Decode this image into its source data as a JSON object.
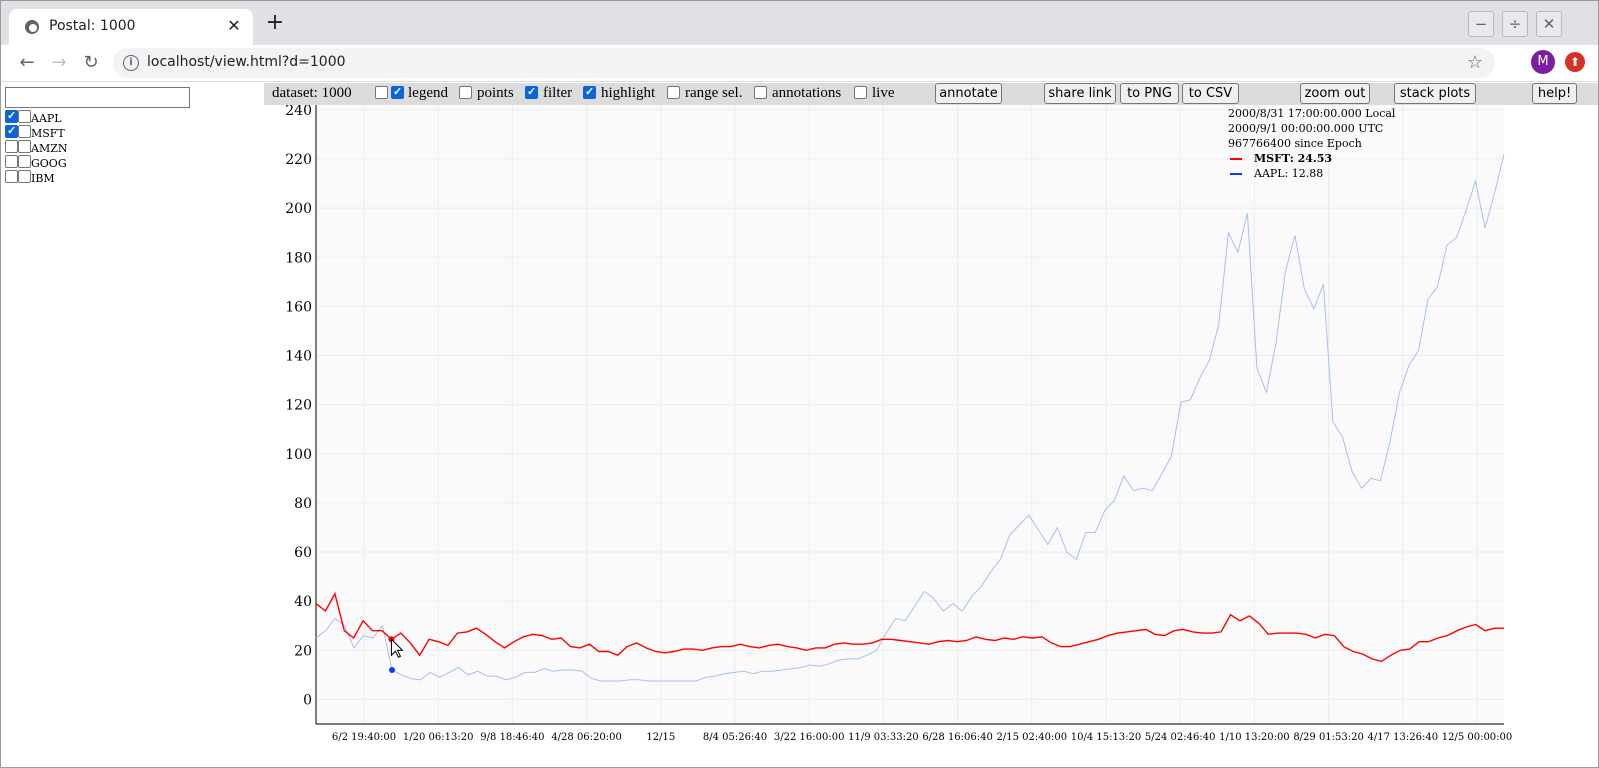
{
  "browser": {
    "tab_title": "Postal: 1000",
    "new_tab": "+",
    "tab_close": "✕",
    "url": "localhost/view.html?d=1000",
    "profile_initial": "M",
    "window_controls": [
      "−",
      "÷",
      "✕"
    ]
  },
  "sidebar": {
    "filter_placeholder": "",
    "series": [
      {
        "label": "AAPL",
        "checked": true
      },
      {
        "label": "MSFT",
        "checked": true
      },
      {
        "label": "AMZN",
        "checked": false
      },
      {
        "label": "GOOG",
        "checked": false
      },
      {
        "label": "IBM",
        "checked": false
      }
    ]
  },
  "toolbar": {
    "dataset_label": "dataset: 1000",
    "legend_label": "legend",
    "points_label": "points",
    "filter_label": "filter",
    "highlight_label": "highlight",
    "range_sel_label": "range sel.",
    "annotations_label": "annotations",
    "live_label": "live",
    "annotate_button": "annotate",
    "share_link_button": "share link",
    "to_png_button": "to PNG",
    "to_csv_button": "to CSV",
    "zoom_out_button": "zoom out",
    "stack_plots_button": "stack plots",
    "help_button": "help!"
  },
  "legend": {
    "local_time": "2000/8/31 17:00:00.000 Local",
    "utc_time": "2000/9/1 00:00:00.000 UTC",
    "epoch": "967766400 since Epoch",
    "msft": "MSFT: 24.53",
    "aapl": "AAPL: 12.88"
  },
  "chart_data": {
    "type": "line",
    "y_ticks": [
      "0",
      "20",
      "40",
      "60",
      "80",
      "100",
      "120",
      "140",
      "160",
      "180",
      "200",
      "220",
      "240"
    ],
    "ylim": [
      -10,
      242
    ],
    "x_ticks": [
      "6/2 19:40:00",
      "1/20 06:13:20",
      "9/8 18:46:40",
      "4/28 06:20:00",
      "12/15",
      "8/4 05:26:40",
      "3/22 16:00:00",
      "11/9 03:33:20",
      "6/28 16:06:40",
      "2/15 02:40:00",
      "10/4 15:13:20",
      "5/24 02:46:40",
      "1/10 13:20:00",
      "8/29 01:53:20",
      "4/17 13:26:40",
      "12/5 00:00:00"
    ],
    "grid": true,
    "highlight_index": 8,
    "colors": {
      "AAPL": "#a8bff0",
      "MSFT": "#ff0000",
      "highlight_point": "#0b3bff"
    },
    "series": [
      {
        "name": "AAPL",
        "values": [
          25,
          28,
          33,
          30,
          21,
          26,
          25,
          30,
          12,
          10,
          8.5,
          8,
          11,
          9,
          11,
          13,
          10,
          11.5,
          9.5,
          9.5,
          8,
          9,
          11,
          11,
          12.5,
          11.5,
          12,
          12,
          11.5,
          8.5,
          7.5,
          7.5,
          7.5,
          8,
          8,
          7.5,
          7.5,
          7.5,
          7.5,
          7.5,
          7.5,
          9,
          9.5,
          10.5,
          11,
          11.5,
          10.5,
          11.5,
          11.5,
          12,
          12.5,
          13,
          14,
          13.5,
          14.5,
          16,
          16.5,
          16.5,
          18,
          20,
          27,
          33,
          32,
          38,
          44,
          41,
          36,
          39,
          36,
          42,
          46,
          52,
          57,
          67,
          71,
          75,
          69,
          63,
          70,
          60,
          57,
          68,
          68,
          77,
          81,
          91,
          85,
          86,
          85,
          92,
          99,
          121,
          122,
          131,
          138,
          153,
          190,
          182,
          198,
          135,
          125,
          145,
          174,
          189,
          167,
          159,
          169,
          113,
          107,
          93,
          86,
          90,
          89,
          105,
          125,
          136,
          142,
          163,
          168,
          185,
          188,
          199,
          211,
          192,
          206,
          222
        ]
      },
      {
        "name": "MSFT",
        "values": [
          39,
          36,
          43,
          28,
          25,
          32,
          28,
          28,
          24.5,
          27,
          23,
          18,
          24.5,
          23.5,
          22,
          27,
          27.5,
          29,
          26.5,
          23.5,
          21,
          23.5,
          25.5,
          26.5,
          26,
          24.5,
          25,
          21.5,
          21,
          22.5,
          19.5,
          19.5,
          18,
          21.5,
          23,
          21,
          19.5,
          19,
          19.5,
          20.5,
          20.5,
          20,
          21,
          21.5,
          21.5,
          22.5,
          21.5,
          21,
          22,
          22.5,
          21.5,
          21,
          20,
          21,
          21,
          22.5,
          23,
          22.5,
          22.5,
          23,
          24.5,
          24.5,
          24,
          23.5,
          23,
          22.5,
          23.5,
          24,
          23.5,
          24,
          25.5,
          24.5,
          24,
          25,
          24.5,
          25.5,
          25,
          25.5,
          23,
          21.5,
          21.5,
          22.5,
          23.5,
          24.5,
          26,
          27,
          27.5,
          28,
          28.5,
          26.5,
          26,
          28,
          28.5,
          27.5,
          27,
          27,
          27.5,
          34.5,
          32,
          34,
          31,
          26.5,
          27,
          27,
          27,
          26.5,
          25,
          26.5,
          26,
          21.5,
          19.5,
          18.5,
          16.5,
          15.5,
          18,
          20,
          20.5,
          23.5,
          23.5,
          25,
          26,
          28,
          29.5,
          30.5,
          28,
          29,
          29
        ]
      }
    ]
  }
}
